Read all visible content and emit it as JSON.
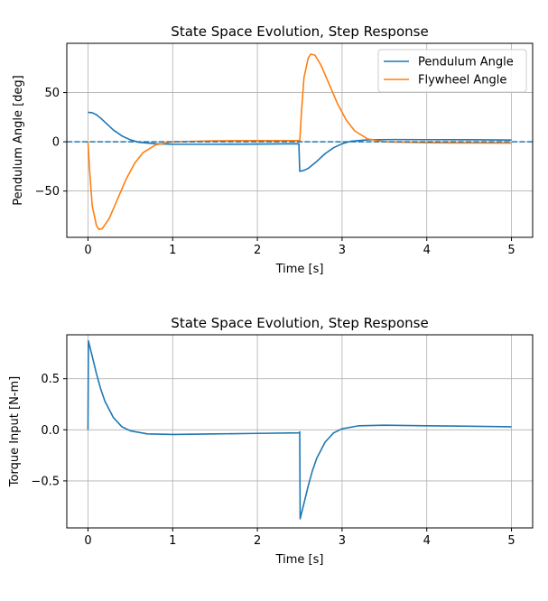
{
  "chart_data": [
    {
      "type": "line",
      "title": "State Space Evolution, Step Response",
      "xlabel": "Time [s]",
      "ylabel": "Pendulum Angle [deg]",
      "xlim": [
        -0.25,
        5.25
      ],
      "ylim": [
        -97,
        100
      ],
      "xticks": [
        0,
        1,
        2,
        3,
        4,
        5
      ],
      "yticks": [
        50,
        0,
        -50
      ],
      "xtick_labels": [
        "0",
        "1",
        "2",
        "3",
        "4",
        "5"
      ],
      "ytick_labels": [
        "50",
        "0",
        "−50"
      ],
      "grid": true,
      "legend": "top-right",
      "reference_line": {
        "y": 0,
        "style": "dashed",
        "color": "#1f77b4"
      },
      "series": [
        {
          "name": "Pendulum Angle",
          "color": "#1f77b4",
          "points": [
            [
              0,
              30
            ],
            [
              0.05,
              29.5
            ],
            [
              0.1,
              27.5
            ],
            [
              0.15,
              24
            ],
            [
              0.2,
              20
            ],
            [
              0.3,
              12
            ],
            [
              0.4,
              6
            ],
            [
              0.5,
              2
            ],
            [
              0.6,
              -0.5
            ],
            [
              0.8,
              -2
            ],
            [
              1.0,
              -2.5
            ],
            [
              1.5,
              -2.5
            ],
            [
              2.0,
              -2.3
            ],
            [
              2.49,
              -2
            ],
            [
              2.5,
              -30
            ],
            [
              2.55,
              -29
            ],
            [
              2.6,
              -27
            ],
            [
              2.7,
              -20
            ],
            [
              2.8,
              -12
            ],
            [
              2.9,
              -6
            ],
            [
              3.0,
              -2
            ],
            [
              3.1,
              0.5
            ],
            [
              3.3,
              2
            ],
            [
              3.6,
              2.3
            ],
            [
              4.0,
              2.2
            ],
            [
              4.5,
              2.1
            ],
            [
              5.0,
              1.8
            ]
          ]
        },
        {
          "name": "Flywheel Angle",
          "color": "#ff7f0e",
          "points": [
            [
              0,
              0
            ],
            [
              0.02,
              -30
            ],
            [
              0.05,
              -65
            ],
            [
              0.1,
              -85
            ],
            [
              0.13,
              -89
            ],
            [
              0.17,
              -88
            ],
            [
              0.25,
              -78
            ],
            [
              0.35,
              -58
            ],
            [
              0.45,
              -38
            ],
            [
              0.55,
              -22
            ],
            [
              0.65,
              -11
            ],
            [
              0.8,
              -3
            ],
            [
              1.0,
              0
            ],
            [
              1.5,
              1
            ],
            [
              2.0,
              1.2
            ],
            [
              2.49,
              1.2
            ],
            [
              2.5,
              0
            ],
            [
              2.52,
              30
            ],
            [
              2.55,
              65
            ],
            [
              2.6,
              85
            ],
            [
              2.63,
              89
            ],
            [
              2.68,
              88
            ],
            [
              2.75,
              78
            ],
            [
              2.85,
              58
            ],
            [
              2.95,
              38
            ],
            [
              3.05,
              22
            ],
            [
              3.15,
              11
            ],
            [
              3.3,
              3
            ],
            [
              3.5,
              0
            ],
            [
              4.0,
              -1
            ],
            [
              4.5,
              -1.2
            ],
            [
              5.0,
              -1.3
            ]
          ]
        }
      ]
    },
    {
      "type": "line",
      "title": "State Space Evolution, Step Response",
      "xlabel": "Time [s]",
      "ylabel": "Torque Input [N-m]",
      "xlim": [
        -0.25,
        5.25
      ],
      "ylim": [
        -0.96,
        0.93
      ],
      "xticks": [
        0,
        1,
        2,
        3,
        4,
        5
      ],
      "yticks": [
        0.5,
        0.0,
        -0.5
      ],
      "xtick_labels": [
        "0",
        "1",
        "2",
        "3",
        "4",
        "5"
      ],
      "ytick_labels": [
        "0.5",
        "0.0",
        "−0.5"
      ],
      "grid": true,
      "series": [
        {
          "color": "#1f77b4",
          "points": [
            [
              0,
              0
            ],
            [
              0.005,
              0.87
            ],
            [
              0.05,
              0.72
            ],
            [
              0.1,
              0.55
            ],
            [
              0.15,
              0.4
            ],
            [
              0.2,
              0.28
            ],
            [
              0.3,
              0.12
            ],
            [
              0.4,
              0.03
            ],
            [
              0.5,
              -0.01
            ],
            [
              0.7,
              -0.04
            ],
            [
              1.0,
              -0.045
            ],
            [
              1.5,
              -0.04
            ],
            [
              2.0,
              -0.035
            ],
            [
              2.49,
              -0.03
            ],
            [
              2.5,
              -0.02
            ],
            [
              2.505,
              -0.87
            ],
            [
              2.55,
              -0.72
            ],
            [
              2.6,
              -0.55
            ],
            [
              2.65,
              -0.4
            ],
            [
              2.7,
              -0.28
            ],
            [
              2.8,
              -0.12
            ],
            [
              2.9,
              -0.03
            ],
            [
              3.0,
              0.01
            ],
            [
              3.2,
              0.04
            ],
            [
              3.5,
              0.045
            ],
            [
              4.0,
              0.04
            ],
            [
              4.5,
              0.035
            ],
            [
              5.0,
              0.03
            ]
          ]
        }
      ]
    }
  ]
}
